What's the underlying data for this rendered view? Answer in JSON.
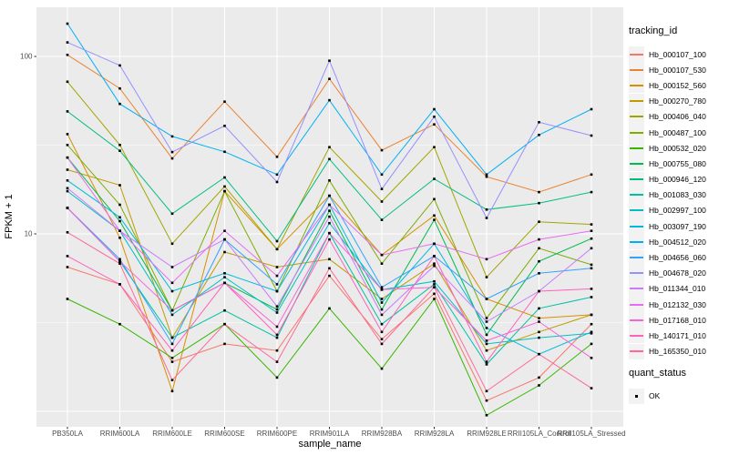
{
  "chart_data": {
    "type": "line",
    "title": "",
    "x_axis": {
      "title": "sample_name",
      "categories": [
        "PB350LA",
        "RRIM600LA",
        "RRIM600LE",
        "RRIM600SE",
        "RRIM600PE",
        "RRIM901LA",
        "RRIM928BA",
        "RRIM928LA",
        "RRIM928LE",
        "RRII105LA_Control",
        "RRII105LA_Stressed"
      ]
    },
    "y_axis": {
      "title": "FPKM + 1",
      "scale": "log10",
      "tick_labels": [
        "100",
        "10"
      ],
      "tick_values": [
        100,
        10
      ],
      "major_gridlines": [
        100,
        10,
        1
      ],
      "minor_gridlines": [
        31.62,
        3.162
      ],
      "range": [
        0.82,
        189
      ]
    },
    "panel": {
      "bg": "#EBEBEB",
      "grid": "#FFFFFF"
    },
    "point": {
      "color": "#000000",
      "shape": "square"
    },
    "legend": {
      "tracking_title": "tracking_id",
      "quant_title": "quant_status",
      "quant_items": [
        {
          "label": "OK",
          "marker": "black-square"
        }
      ]
    },
    "series": [
      {
        "name": "Hb_000107_100",
        "color": "#F8766D",
        "values": [
          6.5,
          5.2,
          1.9,
          2.4,
          2.2,
          5.8,
          2.55,
          4.6,
          1.15,
          1.55,
          3.1
        ]
      },
      {
        "name": "Hb_000107_530",
        "color": "#EA8331",
        "values": [
          102,
          66,
          26.6,
          55.6,
          27.2,
          74.7,
          29.6,
          41.4,
          21,
          17.2,
          21.6
        ]
      },
      {
        "name": "Hb_000152_560",
        "color": "#D89000",
        "values": [
          36.5,
          9.5,
          1.3,
          17.4,
          8.2,
          16.4,
          7.6,
          12.7,
          4.3,
          3.35,
          3.5
        ]
      },
      {
        "name": "Hb_000270_780",
        "color": "#C09B00",
        "values": [
          23,
          18.8,
          2.6,
          7.9,
          6.5,
          7.2,
          4.3,
          6.8,
          2.2,
          2.8,
          3.5
        ]
      },
      {
        "name": "Hb_000406_040",
        "color": "#A3A500",
        "values": [
          72,
          31.7,
          8.8,
          18.5,
          8.2,
          30.8,
          15.2,
          30.8,
          5.7,
          11.7,
          11.3
        ]
      },
      {
        "name": "Hb_000487_100",
        "color": "#7CAE00",
        "values": [
          31.7,
          14.6,
          3.7,
          17.4,
          4.75,
          20,
          6.8,
          15.7,
          3.35,
          8.3,
          6.7
        ]
      },
      {
        "name": "Hb_000532_020",
        "color": "#39B600",
        "values": [
          4.3,
          3.1,
          2.0,
          3.1,
          1.55,
          3.8,
          1.74,
          4.3,
          0.95,
          1.4,
          2.4
        ]
      },
      {
        "name": "Hb_000755_080",
        "color": "#00BB4E",
        "values": [
          26.9,
          11.8,
          3.7,
          5.3,
          3.75,
          13.5,
          3.75,
          12.0,
          2.7,
          7.0,
          9.4
        ]
      },
      {
        "name": "Hb_000946_120",
        "color": "#00BF7D",
        "values": [
          49,
          29.4,
          13,
          20.8,
          9.1,
          26.4,
          12.0,
          20.4,
          13.7,
          14.9,
          17.2
        ]
      },
      {
        "name": "Hb_001083_030",
        "color": "#00C1A3",
        "values": [
          14,
          7.0,
          2.6,
          3.7,
          2.6,
          10.1,
          3.1,
          5.2,
          1.84,
          3.8,
          4.4
        ]
      },
      {
        "name": "Hb_002997_100",
        "color": "#00BFC4",
        "values": [
          17.4,
          10.4,
          3.5,
          5.7,
          3.6,
          11.5,
          4.85,
          5.4,
          2.4,
          2.6,
          2.75
        ]
      },
      {
        "name": "Hb_003097_190",
        "color": "#00BAE0",
        "values": [
          20,
          12.4,
          4.75,
          6.0,
          4.75,
          14.6,
          4.1,
          8.8,
          2.95,
          2.1,
          2.8
        ]
      },
      {
        "name": "Hb_004512_020",
        "color": "#00B0F6",
        "values": [
          153,
          54,
          35.4,
          29,
          21.6,
          56.7,
          21.6,
          50.4,
          21.6,
          36.1,
          50.4
        ]
      },
      {
        "name": "Hb_004656_060",
        "color": "#35A2FF",
        "values": [
          14,
          7.2,
          2.4,
          9.3,
          5.2,
          16.4,
          5.0,
          7.5,
          4.3,
          6.0,
          6.4
        ]
      },
      {
        "name": "Hb_004678_020",
        "color": "#9590FF",
        "values": [
          120,
          89,
          28.9,
          40.6,
          19.6,
          94.6,
          17.9,
          45.7,
          12.3,
          42.6,
          35.8
        ]
      },
      {
        "name": "Hb_011344_010",
        "color": "#C77CFF",
        "values": [
          18.1,
          10.4,
          6.5,
          9.3,
          3.9,
          12.5,
          3.5,
          6.6,
          3.2,
          4.75,
          8.3
        ]
      },
      {
        "name": "Hb_012132_030",
        "color": "#E76BF3",
        "values": [
          26.9,
          10.4,
          5.3,
          10.4,
          5.8,
          14.6,
          7.6,
          8.8,
          7.2,
          9.3,
          10.4
        ]
      },
      {
        "name": "Hb_017168_010",
        "color": "#FA62DB",
        "values": [
          14,
          7.0,
          3.7,
          5.3,
          3.0,
          10.1,
          4.85,
          5.0,
          2.5,
          3.2,
          2.0
        ]
      },
      {
        "name": "Hb_140171_010",
        "color": "#FF62BC",
        "values": [
          7.5,
          5.2,
          2.2,
          5.3,
          2.7,
          9.3,
          2.8,
          7.5,
          1.9,
          4.75,
          4.9
        ]
      },
      {
        "name": "Hb_165350_010",
        "color": "#FF6A98",
        "values": [
          10.2,
          6.8,
          1.5,
          3.1,
          1.9,
          6.4,
          2.4,
          5.0,
          1.3,
          2.1,
          1.35
        ]
      }
    ]
  }
}
